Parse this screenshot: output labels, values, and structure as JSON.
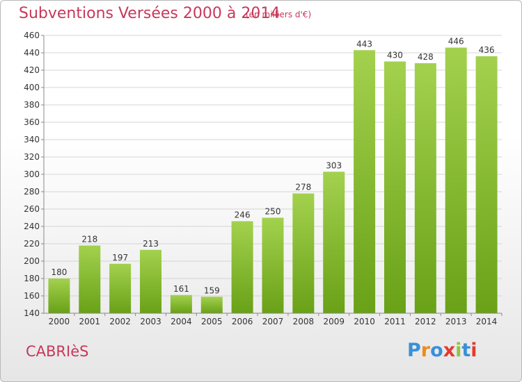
{
  "header": {
    "title": "Subventions Versées 2000 à 2014",
    "unit": "(en milliers d'€)"
  },
  "footer": {
    "place": "CABRIèS",
    "logo_text": "Proxiti"
  },
  "colors": {
    "title": "#c8385a",
    "bar_light": "#a3d14e",
    "bar_dark": "#69a117",
    "logo_letters": [
      "#3a8fd8",
      "#f08a1c",
      "#3a8fd8",
      "#e23b2e",
      "#8cc63f",
      "#3a8fd8",
      "#e23b2e"
    ]
  },
  "chart_data": {
    "type": "bar",
    "title": "Subventions Versées 2000 à 2014",
    "subtitle": "(en milliers d'€)",
    "xlabel": "",
    "ylabel": "",
    "categories": [
      "2000",
      "2001",
      "2002",
      "2003",
      "2004",
      "2005",
      "2006",
      "2007",
      "2008",
      "2009",
      "2010",
      "2011",
      "2012",
      "2013",
      "2014"
    ],
    "values": [
      180,
      218,
      197,
      213,
      161,
      159,
      246,
      250,
      278,
      303,
      443,
      430,
      428,
      446,
      436
    ],
    "data_labels": [
      "180",
      "218",
      "197",
      "213",
      "161",
      "159",
      "246",
      "250",
      "278",
      "303",
      "443",
      "430",
      "428",
      "446",
      "436"
    ],
    "ylim": [
      140,
      460
    ],
    "yticks": [
      140,
      160,
      180,
      200,
      220,
      240,
      260,
      280,
      300,
      320,
      340,
      360,
      380,
      400,
      420,
      440,
      460
    ],
    "grid": true,
    "legend": "none"
  }
}
